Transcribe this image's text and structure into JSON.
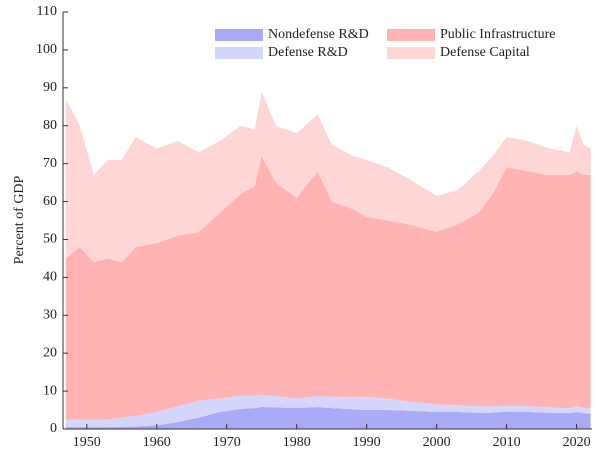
{
  "chart_data": {
    "type": "stacked-area",
    "y_label": "Percent of GDP",
    "x": [
      1947,
      1949,
      1951,
      1953,
      1955,
      1957,
      1960,
      1963,
      1966,
      1969,
      1972,
      1974,
      1975,
      1977,
      1980,
      1983,
      1985,
      1988,
      1990,
      1993,
      1996,
      2000,
      2003,
      2006,
      2008,
      2010,
      2013,
      2016,
      2019,
      2020,
      2021,
      2022
    ],
    "series": [
      {
        "name": "Nondefense R&D",
        "color": "#aaabf7",
        "values": [
          0.5,
          0.5,
          0.5,
          0.5,
          0.6,
          0.7,
          1,
          1.8,
          3,
          4.5,
          5.3,
          5.5,
          5.8,
          5.7,
          5.5,
          5.8,
          5.5,
          5.2,
          5,
          5,
          4.8,
          4.5,
          4.5,
          4.3,
          4.3,
          4.6,
          4.5,
          4.3,
          4.2,
          4.5,
          4.2,
          4
        ]
      },
      {
        "name": "Defense R&D",
        "color": "#d5d6fb",
        "values": [
          2,
          2,
          2,
          2,
          2.4,
          2.8,
          3.5,
          4.2,
          4.5,
          3.5,
          3.5,
          3.3,
          3.2,
          3,
          2.5,
          2.9,
          3,
          3.2,
          3.5,
          3,
          2.5,
          2,
          1.8,
          1.7,
          1.7,
          1.6,
          1.5,
          1.4,
          1.3,
          1.5,
          1.5,
          1.5
        ]
      },
      {
        "name": "Public Infrastructure",
        "color": "#ffb3b3",
        "values": [
          42.5,
          45.5,
          41.5,
          42.5,
          41,
          44.5,
          44.5,
          45,
          44.5,
          49,
          53.2,
          55.2,
          63,
          56.3,
          53,
          59.3,
          51.5,
          49.6,
          47.5,
          47,
          46.7,
          45.5,
          47.7,
          51,
          56,
          62.8,
          62,
          61.3,
          61.5,
          62,
          61.3,
          61.5
        ]
      },
      {
        "name": "Defense Capital",
        "color": "#ffd6d6",
        "values": [
          42,
          32,
          23,
          26,
          27,
          29,
          25,
          25,
          21,
          19,
          18,
          15,
          17,
          15,
          17,
          15,
          15,
          14,
          15,
          14,
          12,
          9.5,
          9,
          11,
          10,
          8,
          8,
          7,
          6,
          12,
          8,
          7
        ]
      }
    ],
    "xlim": [
      1946.6,
      2022.2
    ],
    "xticks": [
      1950,
      1960,
      1970,
      1980,
      1990,
      2000,
      2010,
      2020
    ],
    "ylim": [
      0,
      110
    ],
    "yticks": [
      0,
      10,
      20,
      30,
      40,
      50,
      60,
      70,
      80,
      90,
      100,
      110
    ]
  }
}
